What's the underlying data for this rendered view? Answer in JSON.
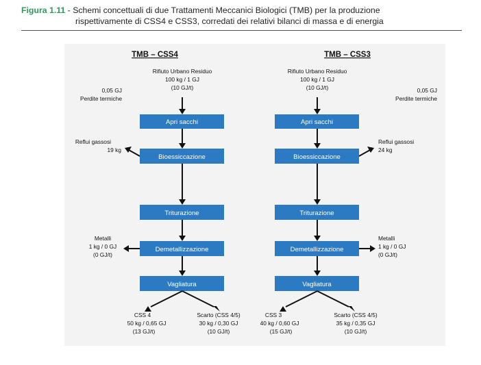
{
  "caption": {
    "number": "Figura 1.11 -",
    "line1": "Schemi concettuali di due Trattamenti Meccanici Biologici (TMB) per la produzione",
    "line2": "rispettivamente di CSS4 e CSS3, corredati dei relativi bilanci di massa e di energia"
  },
  "left": {
    "title": "TMB – CSS4",
    "input": [
      "Rifiuto Urbano Residuo",
      "100 kg / 1 GJ",
      "(10 GJ/t)"
    ],
    "heat": [
      "0,05 GJ",
      "Perdite termiche"
    ],
    "gas": [
      "Reflui gassosi",
      "19 kg"
    ],
    "metals": [
      "Metalli",
      "1 kg / 0 GJ",
      "(0 GJ/t)"
    ],
    "out_a": [
      "CSS 4",
      "50 kg / 0,65 GJ",
      "(13 GJ/t)"
    ],
    "out_b": [
      "Scarto (CSS 4/5)",
      "30 kg / 0,30 GJ",
      "(10 GJ/t)"
    ]
  },
  "right": {
    "title": "TMB – CSS3",
    "input": [
      "Rifiuto Urbano Residuo",
      "100 kg / 1 GJ",
      "(10 GJ/t)"
    ],
    "heat": [
      "0,05 GJ",
      "Perdite termiche"
    ],
    "gas": [
      "Reflui gassosi",
      "24 kg"
    ],
    "metals": [
      "Metalli",
      "1 kg / 0 GJ",
      "(0 GJ/t)"
    ],
    "out_a": [
      "CSS 3",
      "40 kg / 0,60 GJ",
      "(15 GJ/t)"
    ],
    "out_b": [
      "Scarto (CSS 4/5)",
      "35 kg / 0,35 GJ",
      "(10 GJ/t)"
    ]
  },
  "steps": [
    "Apri sacchi",
    "Bioessiccazione",
    "Triturazione",
    "Demetallizzazione",
    "Vagliatura"
  ],
  "colors": {
    "box": "#2c7ac2",
    "caption_number": "#2e9a5c",
    "panel": "#f3f3f3"
  }
}
